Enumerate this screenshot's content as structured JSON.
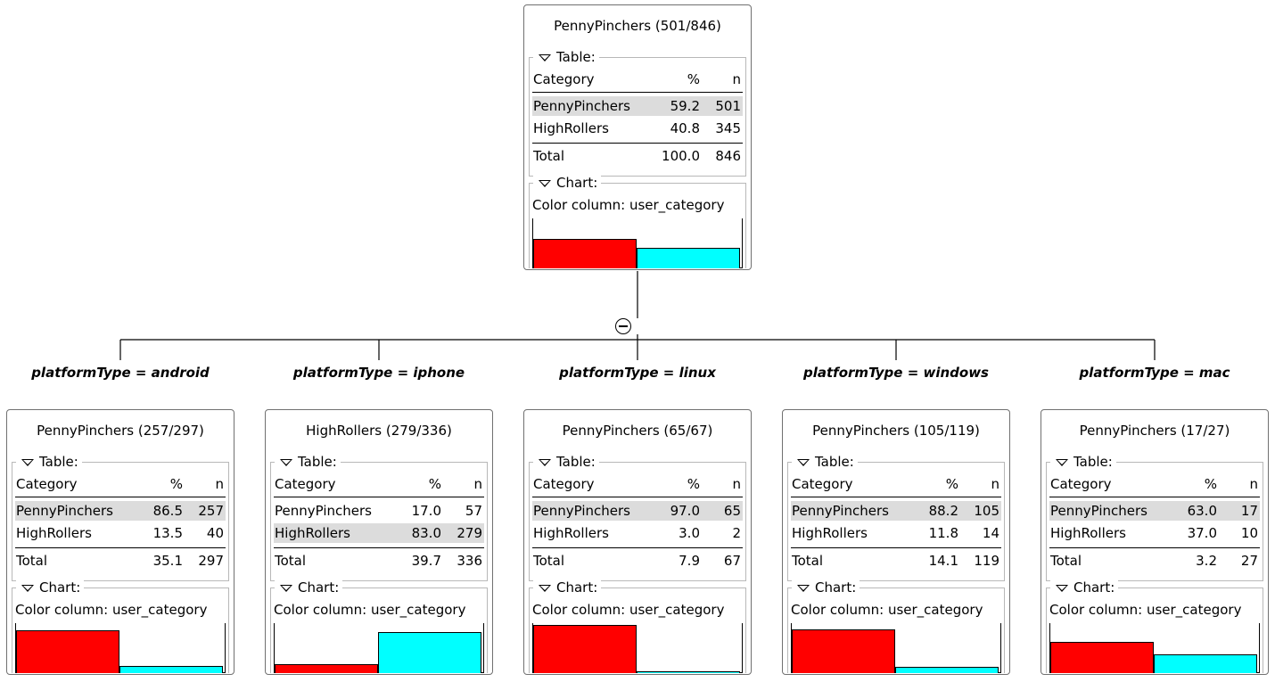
{
  "colors": {
    "penny": "#ff0000",
    "high": "#00ffff",
    "highlight_row": "#dcdcdc"
  },
  "labels": {
    "table_section": "Table:",
    "chart_section": "Chart:",
    "col_category": "Category",
    "col_pct": "%",
    "col_n": "n",
    "total": "Total",
    "color_column": "Color column: user_category"
  },
  "root": {
    "title": "PennyPinchers (501/846)",
    "rows": [
      {
        "category": "PennyPinchers",
        "pct": "59.2",
        "n": "501",
        "highlight": true
      },
      {
        "category": "HighRollers",
        "pct": "40.8",
        "n": "345",
        "highlight": false
      }
    ],
    "total": {
      "pct": "100.0",
      "n": "846"
    }
  },
  "children": [
    {
      "edge": "platformType = android",
      "title": "PennyPinchers (257/297)",
      "rows": [
        {
          "category": "PennyPinchers",
          "pct": "86.5",
          "n": "257",
          "highlight": true
        },
        {
          "category": "HighRollers",
          "pct": "13.5",
          "n": "40",
          "highlight": false
        }
      ],
      "total": {
        "pct": "35.1",
        "n": "297"
      }
    },
    {
      "edge": "platformType = iphone",
      "title": "HighRollers (279/336)",
      "rows": [
        {
          "category": "PennyPinchers",
          "pct": "17.0",
          "n": "57",
          "highlight": false
        },
        {
          "category": "HighRollers",
          "pct": "83.0",
          "n": "279",
          "highlight": true
        }
      ],
      "total": {
        "pct": "39.7",
        "n": "336"
      }
    },
    {
      "edge": "platformType = linux",
      "title": "PennyPinchers (65/67)",
      "rows": [
        {
          "category": "PennyPinchers",
          "pct": "97.0",
          "n": "65",
          "highlight": true
        },
        {
          "category": "HighRollers",
          "pct": "3.0",
          "n": "2",
          "highlight": false
        }
      ],
      "total": {
        "pct": "7.9",
        "n": "67"
      }
    },
    {
      "edge": "platformType = windows",
      "title": "PennyPinchers (105/119)",
      "rows": [
        {
          "category": "PennyPinchers",
          "pct": "88.2",
          "n": "105",
          "highlight": true
        },
        {
          "category": "HighRollers",
          "pct": "11.8",
          "n": "14",
          "highlight": false
        }
      ],
      "total": {
        "pct": "14.1",
        "n": "119"
      }
    },
    {
      "edge": "platformType = mac",
      "title": "PennyPinchers (17/27)",
      "rows": [
        {
          "category": "PennyPinchers",
          "pct": "63.0",
          "n": "17",
          "highlight": true
        },
        {
          "category": "HighRollers",
          "pct": "37.0",
          "n": "10",
          "highlight": false
        }
      ],
      "total": {
        "pct": "3.2",
        "n": "27"
      }
    }
  ]
}
